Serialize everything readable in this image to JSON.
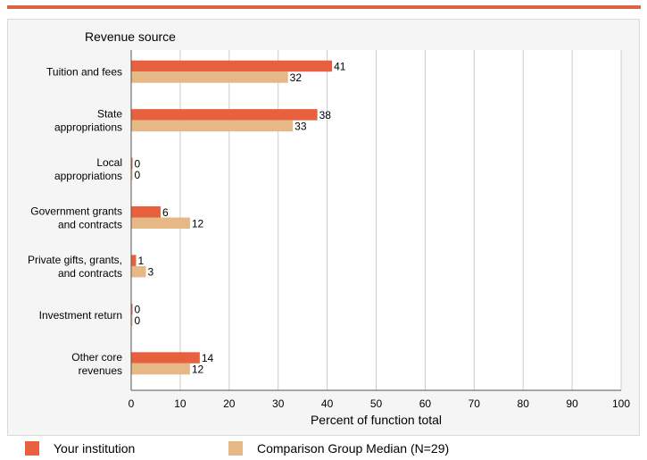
{
  "chart_data": {
    "type": "bar",
    "orientation": "horizontal",
    "title": "Revenue source",
    "xlabel": "Percent of function total",
    "xlim": [
      0,
      100
    ],
    "xticks": [
      0,
      10,
      20,
      30,
      40,
      50,
      60,
      70,
      80,
      90,
      100
    ],
    "categories": [
      [
        "Tuition and fees"
      ],
      [
        "State",
        "appropriations"
      ],
      [
        "Local",
        "appropriations"
      ],
      [
        "Government grants",
        "and contracts"
      ],
      [
        "Private gifts, grants,",
        "and contracts"
      ],
      [
        "Investment return"
      ],
      [
        "Other core",
        "revenues"
      ]
    ],
    "series": [
      {
        "name": "Your institution",
        "color": "#e8613f",
        "values": [
          41,
          38,
          0,
          6,
          1,
          0,
          14
        ]
      },
      {
        "name": "Comparison Group Median (N=29)",
        "color": "#e5b885",
        "values": [
          32,
          33,
          0,
          12,
          3,
          0,
          12
        ]
      }
    ],
    "grid": true,
    "legend_position": "bottom"
  }
}
